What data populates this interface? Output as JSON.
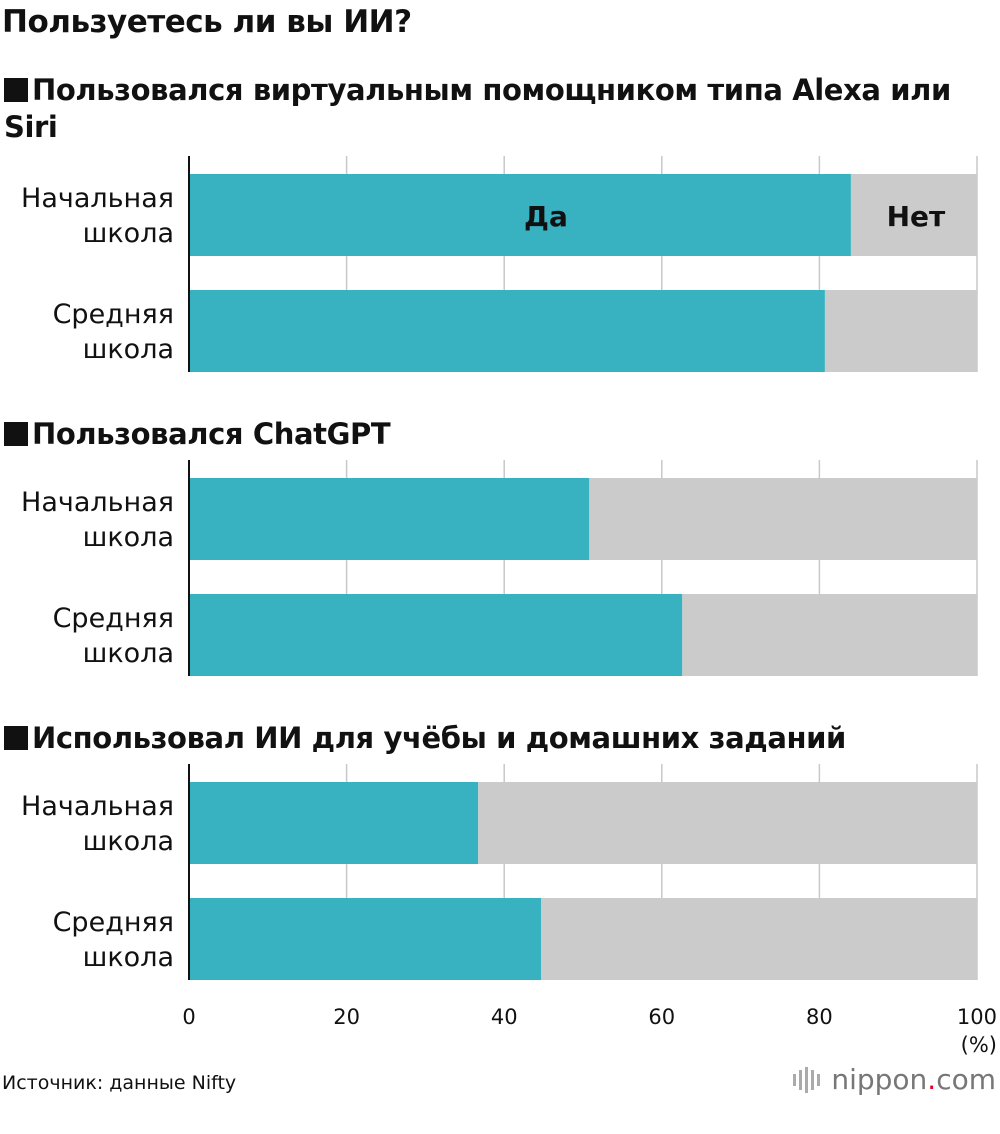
{
  "title": "Пользуетесь ли вы ИИ?",
  "source": "Источник: данные Nifty",
  "logo": {
    "name": "nippon",
    "dot": ".",
    "tld": "com"
  },
  "colors": {
    "yes": "#38b1c1",
    "no": "#cbcbcb",
    "grid": "#c8c8c8",
    "axis": "#111111"
  },
  "chart_data": {
    "type": "bar",
    "orientation": "horizontal",
    "stacked": true,
    "xlim": [
      0,
      100
    ],
    "xticks": [
      0,
      20,
      40,
      60,
      80,
      100
    ],
    "unit_label": "(%)",
    "grid": true,
    "categories": [
      "Начальная школа",
      "Средняя школа"
    ],
    "category_lines": [
      [
        "Начальная",
        "школа"
      ],
      [
        "Средняя",
        "школа"
      ]
    ],
    "legend": [
      "Да",
      "Нет"
    ],
    "panels": [
      {
        "title": "Пользовался виртуальным помощником типа Alexa или Siri",
        "series": [
          {
            "name": "Да",
            "values": [
              84,
              80.7
            ]
          },
          {
            "name": "Нет",
            "values": [
              16,
              19.3
            ]
          }
        ]
      },
      {
        "title": "Пользовался ChatGPT",
        "series": [
          {
            "name": "Да",
            "values": [
              50.8,
              62.6
            ]
          },
          {
            "name": "Нет",
            "values": [
              49.2,
              37.4
            ]
          }
        ]
      },
      {
        "title": "Использовал ИИ для учёбы и домашних заданий",
        "series": [
          {
            "name": "Да",
            "values": [
              36.7,
              44.7
            ]
          },
          {
            "name": "Нет",
            "values": [
              63.3,
              55.3
            ]
          }
        ]
      }
    ]
  }
}
